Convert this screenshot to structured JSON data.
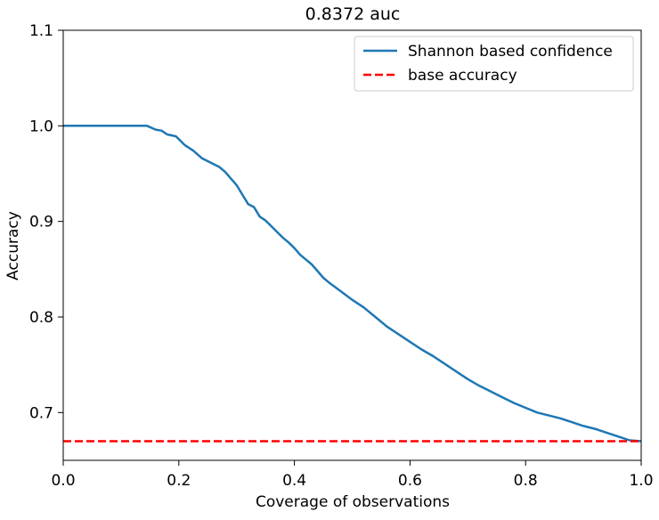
{
  "chart_data": {
    "type": "line",
    "title": "0.8372 auc",
    "xlabel": "Coverage of observations",
    "ylabel": "Accuracy",
    "xlim": [
      0.0,
      1.0
    ],
    "ylim": [
      0.65,
      1.1
    ],
    "xticks": [
      0.0,
      0.2,
      0.4,
      0.6,
      0.8,
      1.0
    ],
    "xtick_labels": [
      "0.0",
      "0.2",
      "0.4",
      "0.6",
      "0.8",
      "1.0"
    ],
    "yticks": [
      0.7,
      0.8,
      0.9,
      1.0,
      1.1
    ],
    "ytick_labels": [
      "0.7",
      "0.8",
      "0.9",
      "1.0",
      "1.1"
    ],
    "grid": false,
    "legend_position": "top-right",
    "series": [
      {
        "name": "Shannon based confidence",
        "color": "#1f77b4",
        "style": "solid",
        "x": [
          0.0,
          0.05,
          0.1,
          0.145,
          0.16,
          0.17,
          0.18,
          0.195,
          0.21,
          0.225,
          0.24,
          0.26,
          0.27,
          0.28,
          0.29,
          0.3,
          0.31,
          0.32,
          0.33,
          0.34,
          0.35,
          0.36,
          0.37,
          0.38,
          0.39,
          0.4,
          0.41,
          0.42,
          0.43,
          0.44,
          0.45,
          0.46,
          0.48,
          0.5,
          0.52,
          0.54,
          0.56,
          0.58,
          0.6,
          0.62,
          0.64,
          0.66,
          0.68,
          0.7,
          0.72,
          0.74,
          0.76,
          0.78,
          0.8,
          0.82,
          0.84,
          0.86,
          0.88,
          0.9,
          0.92,
          0.94,
          0.96,
          0.98,
          1.0
        ],
        "y": [
          1.0,
          1.0,
          1.0,
          1.0,
          0.996,
          0.995,
          0.991,
          0.989,
          0.98,
          0.974,
          0.966,
          0.96,
          0.957,
          0.952,
          0.945,
          0.938,
          0.928,
          0.918,
          0.915,
          0.905,
          0.901,
          0.895,
          0.889,
          0.883,
          0.878,
          0.872,
          0.865,
          0.86,
          0.855,
          0.848,
          0.841,
          0.836,
          0.827,
          0.818,
          0.81,
          0.8,
          0.79,
          0.782,
          0.774,
          0.766,
          0.759,
          0.751,
          0.743,
          0.735,
          0.728,
          0.722,
          0.716,
          0.71,
          0.705,
          0.7,
          0.697,
          0.694,
          0.69,
          0.686,
          0.683,
          0.679,
          0.675,
          0.671,
          0.67
        ]
      },
      {
        "name": "base accuracy",
        "color": "#ff0000",
        "style": "dashed",
        "x": [
          0.0,
          1.0
        ],
        "y": [
          0.67,
          0.67
        ]
      }
    ]
  }
}
